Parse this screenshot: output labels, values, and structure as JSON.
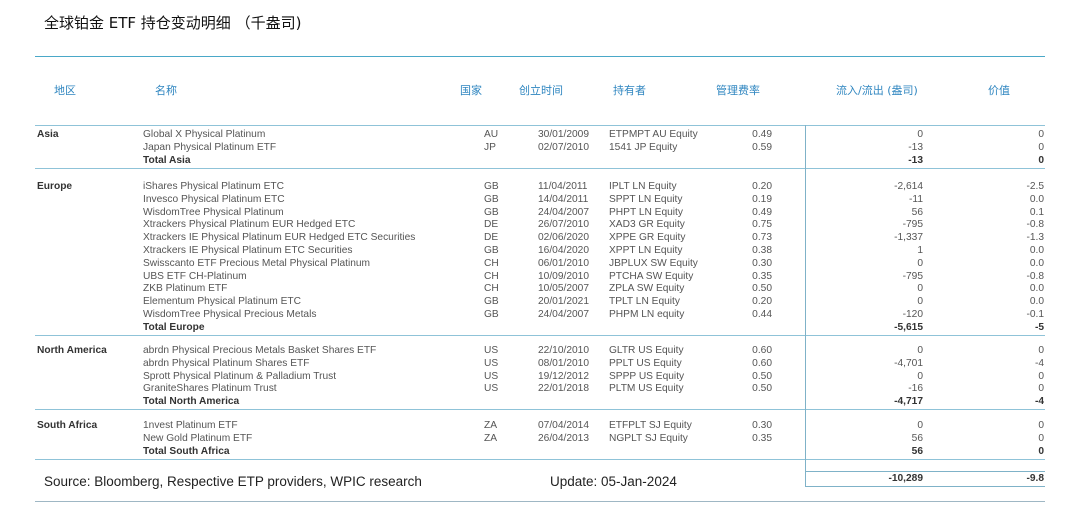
{
  "title": "全球铂金 ETF 持仓变动明细 （千盎司)",
  "headers": {
    "region": "地区",
    "name": "名称",
    "country": "国家",
    "inception": "创立时间",
    "holder": "持有者",
    "fee": "管理费率",
    "flow": "流入/流出 (盎司)",
    "value": "价值"
  },
  "regions": [
    {
      "region": "Asia",
      "rows": [
        {
          "name": "Global X Physical Platinum",
          "country": "AU",
          "date": "30/01/2009",
          "holder": "ETPMPT AU Equity",
          "fee": "0.49",
          "flow": "0",
          "value": "0"
        },
        {
          "name": "Japan Physical Platinum ETF",
          "country": "JP",
          "date": "02/07/2010",
          "holder": "1541 JP Equity",
          "fee": "0.59",
          "flow": "-13",
          "value": "0"
        }
      ],
      "total_label": "Total Asia",
      "total_flow": "-13",
      "total_value": "0"
    },
    {
      "region": "Europe",
      "rows": [
        {
          "name": "iShares Physical Platinum ETC",
          "country": "GB",
          "date": "11/04/2011",
          "holder": "IPLT LN Equity",
          "fee": "0.20",
          "flow": "-2,614",
          "value": "-2.5"
        },
        {
          "name": "Invesco Physical Platinum ETC",
          "country": "GB",
          "date": "14/04/2011",
          "holder": "SPPT LN Equity",
          "fee": "0.19",
          "flow": "-11",
          "value": "0.0"
        },
        {
          "name": "WisdomTree Physical Platinum",
          "country": "GB",
          "date": "24/04/2007",
          "holder": "PHPT LN Equity",
          "fee": "0.49",
          "flow": "56",
          "value": "0.1"
        },
        {
          "name": "Xtrackers Physical Platinum EUR Hedged ETC",
          "country": "DE",
          "date": "26/07/2010",
          "holder": "XAD3 GR Equity",
          "fee": "0.75",
          "flow": "-795",
          "value": "-0.8"
        },
        {
          "name": "Xtrackers IE Physical Platinum EUR Hedged ETC Securities",
          "country": "DE",
          "date": "02/06/2020",
          "holder": "XPPE GR Equity",
          "fee": "0.73",
          "flow": "-1,337",
          "value": "-1.3"
        },
        {
          "name": "Xtrackers IE Physical Platinum ETC Securities",
          "country": "GB",
          "date": "16/04/2020",
          "holder": "XPPT LN Equity",
          "fee": "0.38",
          "flow": "1",
          "value": "0.0"
        },
        {
          "name": "Swisscanto ETF Precious Metal Physical Platinum",
          "country": "CH",
          "date": "06/01/2010",
          "holder": "JBPLUX SW Equity",
          "fee": "0.30",
          "flow": "0",
          "value": "0.0"
        },
        {
          "name": "UBS ETF CH-Platinum",
          "country": "CH",
          "date": "10/09/2010",
          "holder": "PTCHA SW Equity",
          "fee": "0.35",
          "flow": "-795",
          "value": "-0.8"
        },
        {
          "name": "ZKB Platinum ETF",
          "country": "CH",
          "date": "10/05/2007",
          "holder": "ZPLA SW Equity",
          "fee": "0.50",
          "flow": "0",
          "value": "0.0"
        },
        {
          "name": "Elementum Physical Platinum ETC",
          "country": "GB",
          "date": "20/01/2021",
          "holder": "TPLT LN Equity",
          "fee": "0.20",
          "flow": "0",
          "value": "0.0"
        },
        {
          "name": "WisdomTree Physical Precious Metals",
          "country": "GB",
          "date": "24/04/2007",
          "holder": "PHPM LN equity",
          "fee": "0.44",
          "flow": "-120",
          "value": "-0.1"
        }
      ],
      "total_label": "Total Europe",
      "total_flow": "-5,615",
      "total_value": "-5"
    },
    {
      "region": "North America",
      "rows": [
        {
          "name": "abrdn Physical Precious Metals Basket Shares ETF",
          "country": "US",
          "date": "22/10/2010",
          "holder": "GLTR US Equity",
          "fee": "0.60",
          "flow": "0",
          "value": "0"
        },
        {
          "name": "abrdn Physical Platinum Shares ETF",
          "country": "US",
          "date": "08/01/2010",
          "holder": "PPLT US Equity",
          "fee": "0.60",
          "flow": "-4,701",
          "value": "-4"
        },
        {
          "name": "Sprott Physical Platinum & Palladium Trust",
          "country": "US",
          "date": "19/12/2012",
          "holder": "SPPP US Equity",
          "fee": "0.50",
          "flow": "0",
          "value": "0"
        },
        {
          "name": "GraniteShares Platinum Trust",
          "country": "US",
          "date": "22/01/2018",
          "holder": "PLTM US Equity",
          "fee": "0.50",
          "flow": "-16",
          "value": "0"
        }
      ],
      "total_label": "Total North America",
      "total_flow": "-4,717",
      "total_value": "-4"
    },
    {
      "region": "South Africa",
      "rows": [
        {
          "name": "1nvest Platinum ETF",
          "country": "ZA",
          "date": "07/04/2014",
          "holder": "ETFPLT SJ Equity",
          "fee": "0.30",
          "flow": "0",
          "value": "0"
        },
        {
          "name": "New Gold Platinum ETF",
          "country": "ZA",
          "date": "26/04/2013",
          "holder": "NGPLT SJ Equity",
          "fee": "0.35",
          "flow": "56",
          "value": "0"
        }
      ],
      "total_label": "Total South Africa",
      "total_flow": "56",
      "total_value": "0"
    }
  ],
  "grand_total": {
    "flow": "-10,289",
    "value": "-9.8"
  },
  "footer": {
    "source": "Source: Bloomberg,  Respective ETP providers, WPIC research",
    "update": "Update:  05-Jan-2024"
  }
}
